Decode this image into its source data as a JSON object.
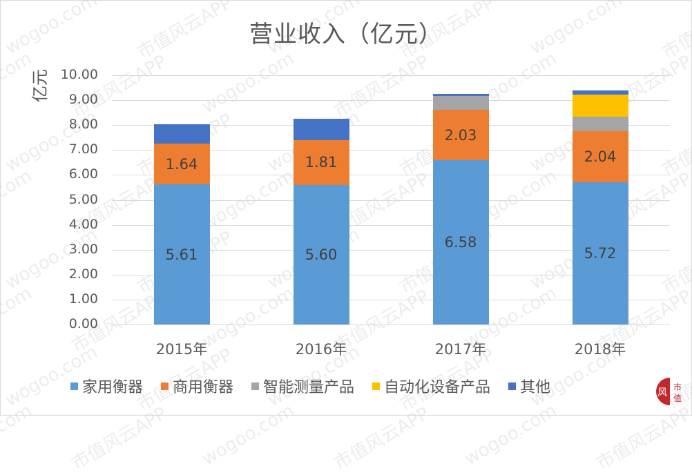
{
  "chart_data": {
    "type": "bar",
    "stacked": true,
    "title": "营业收入（亿元）",
    "xlabel": "",
    "ylabel": "亿元",
    "ylim": [
      0,
      10
    ],
    "yticks": [
      "0.00",
      "1.00",
      "2.00",
      "3.00",
      "4.00",
      "5.00",
      "6.00",
      "7.00",
      "8.00",
      "9.00",
      "10.00"
    ],
    "grid": true,
    "legend_position": "bottom",
    "categories": [
      "2015年",
      "2016年",
      "2017年",
      "2018年"
    ],
    "series": [
      {
        "name": "家用衡器",
        "color": "#5B9BD5",
        "values": [
          5.61,
          5.6,
          6.58,
          5.72
        ],
        "labels": [
          "5.61",
          "5.60",
          "6.58",
          "5.72"
        ]
      },
      {
        "name": "商用衡器",
        "color": "#ED7D31",
        "values": [
          1.64,
          1.81,
          2.03,
          2.04
        ],
        "labels": [
          "1.64",
          "1.81",
          "2.03",
          "2.04"
        ]
      },
      {
        "name": "智能测量产品",
        "color": "#A5A5A5",
        "values": [
          0,
          0,
          0.55,
          0.58
        ],
        "labels": [
          "",
          "",
          "",
          ""
        ]
      },
      {
        "name": "自动化设备产品",
        "color": "#FFC000",
        "values": [
          0,
          0,
          0,
          0.88
        ],
        "labels": [
          "",
          "",
          "",
          ""
        ]
      },
      {
        "name": "其他",
        "color": "#4472C4",
        "values": [
          0.78,
          0.84,
          0.09,
          0.16
        ],
        "labels": [
          "",
          "",
          "",
          ""
        ]
      }
    ]
  },
  "watermark": {
    "texts": [
      "wogoo.com",
      "市值风云APP"
    ]
  },
  "logo": {
    "text": "市值"
  }
}
